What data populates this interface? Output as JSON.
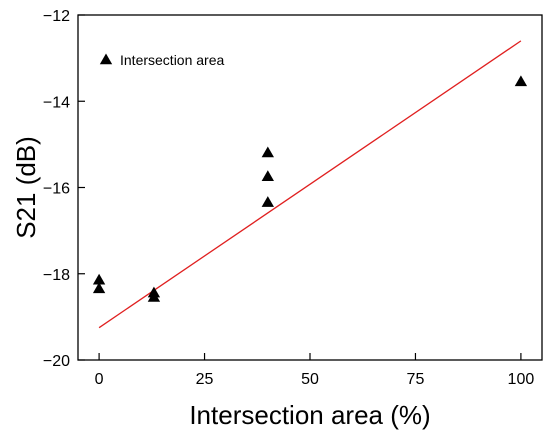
{
  "chart_data": {
    "type": "scatter",
    "title": "",
    "xlabel": "Intersection area (%)",
    "ylabel": "S21 (dB)",
    "xlim": [
      -5,
      105
    ],
    "ylim": [
      -20,
      -12
    ],
    "x_ticks": [
      0,
      25,
      50,
      75,
      100
    ],
    "x_tick_labels": [
      "0",
      "25",
      "50",
      "75",
      "100"
    ],
    "y_ticks": [
      -20,
      -18,
      -16,
      -14,
      -12
    ],
    "y_tick_labels": [
      "−20",
      "−18",
      "−16",
      "−14",
      "−12"
    ],
    "grid": false,
    "legend": {
      "position": "top-left",
      "entries": [
        {
          "label": "Intersection area",
          "marker": "triangle-up",
          "color": "#000000"
        }
      ]
    },
    "series": [
      {
        "name": "Intersection area",
        "marker": "triangle-up",
        "color": "#000000",
        "points": [
          {
            "x": 0,
            "y": -18.15
          },
          {
            "x": 0,
            "y": -18.35
          },
          {
            "x": 13,
            "y": -18.45
          },
          {
            "x": 13,
            "y": -18.55
          },
          {
            "x": 40,
            "y": -15.2
          },
          {
            "x": 40,
            "y": -15.75
          },
          {
            "x": 40,
            "y": -16.35
          },
          {
            "x": 100,
            "y": -13.55
          }
        ]
      }
    ],
    "fit_line": {
      "color": "#e02020",
      "points": [
        {
          "x": 0,
          "y": -19.25
        },
        {
          "x": 100,
          "y": -12.6
        }
      ]
    }
  }
}
